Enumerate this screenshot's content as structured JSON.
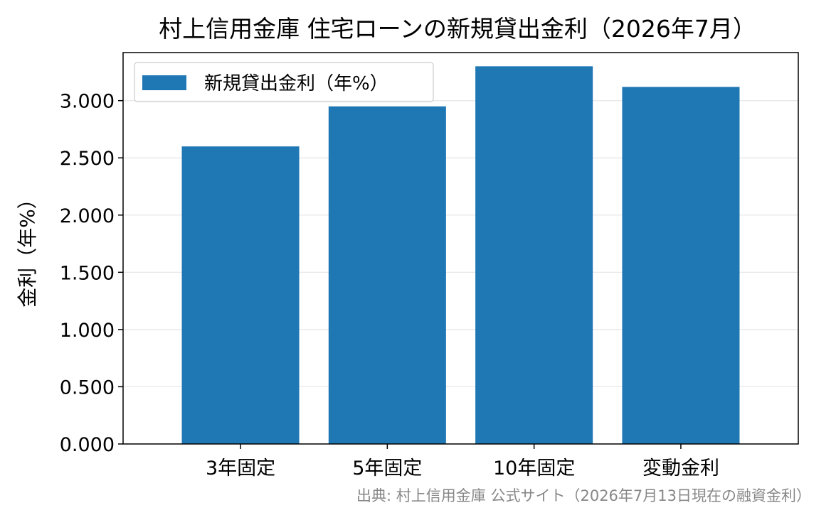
{
  "chart_data": {
    "type": "bar",
    "title": "村上信用金庫 住宅ローンの新規貸出金利（2026年7月）",
    "xlabel": "",
    "ylabel": "金利（年%）",
    "categories": [
      "3年固定",
      "5年固定",
      "10年固定",
      "変動金利"
    ],
    "series": [
      {
        "name": "新規貸出金利（年%）",
        "values": [
          2.6,
          2.95,
          3.3,
          3.12
        ],
        "color": "#1f77b4"
      }
    ],
    "ylim": [
      0,
      3.42
    ],
    "yticks": [
      0,
      0.5,
      1.0,
      1.5,
      2.0,
      2.5,
      3.0
    ],
    "ytick_labels": [
      "0.000",
      "0.500",
      "1.000",
      "1.500",
      "2.000",
      "2.500",
      "3.000"
    ],
    "grid": "horizontal",
    "legend_position": "top-left"
  },
  "source_note": "出典: 村上信用金庫 公式サイト（2026年7月13日現在の融資金利）"
}
